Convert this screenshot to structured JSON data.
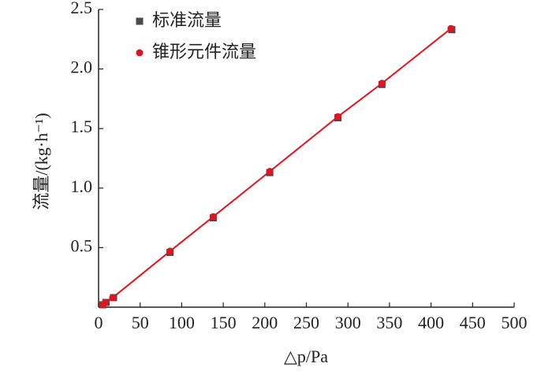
{
  "chart_data": {
    "type": "scatter",
    "xlabel": "△p/Pa",
    "ylabel": "流量/(kg·h⁻¹)",
    "xlim": [
      0,
      500
    ],
    "xticks": [
      0,
      50,
      100,
      150,
      200,
      250,
      300,
      350,
      400,
      450,
      500
    ],
    "ylim": [
      0,
      2.5
    ],
    "yticks": [
      {
        "value": 0.5,
        "label": "0.5"
      },
      {
        "value": 1,
        "label": "1.0"
      },
      {
        "value": 1.5,
        "label": "1.5"
      },
      {
        "value": 2,
        "label": "2.0"
      },
      {
        "value": 2.5,
        "label": "2.5"
      }
    ],
    "legend": "upper left",
    "series": [
      {
        "name": "标准流量",
        "color": "#4a4a4a",
        "marker": "square",
        "line": false,
        "x": [
          5,
          9,
          18,
          86,
          138,
          206,
          288,
          341,
          425
        ],
        "values": [
          0.02,
          0.04,
          0.08,
          0.46,
          0.75,
          1.13,
          1.59,
          1.87,
          2.33
        ]
      },
      {
        "name": "锥形元件流量",
        "color": "#e0141e",
        "marker": "circle",
        "line": true,
        "x": [
          5,
          8,
          17,
          86,
          138,
          206,
          288,
          341,
          424
        ],
        "values": [
          0.02,
          0.04,
          0.08,
          0.47,
          0.76,
          1.14,
          1.6,
          1.88,
          2.34
        ]
      }
    ]
  }
}
